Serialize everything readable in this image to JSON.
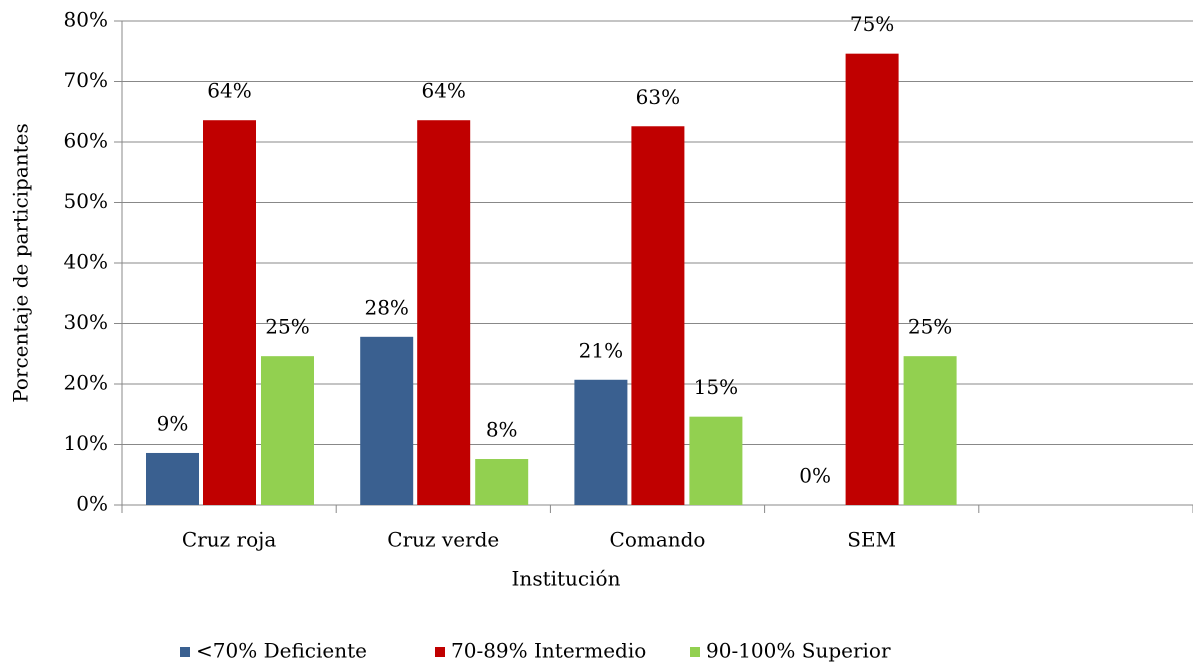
{
  "chart_data": {
    "type": "bar",
    "x_label": "Institución",
    "y_label": "Porcentaje de participantes",
    "categories": [
      "Cruz roja",
      "Cruz verde",
      "Comando",
      "SEM",
      null
    ],
    "series": [
      {
        "name": "<70% Deficiente",
        "color": "#3a6090",
        "values": [
          8.6,
          27.8,
          20.7,
          0,
          null
        ],
        "value_labels": [
          "9%",
          "28%",
          "21%",
          "0%",
          null
        ]
      },
      {
        "name": "70-89% Intermedio",
        "color": "#c00000",
        "values": [
          63.6,
          63.6,
          62.6,
          74.6,
          null
        ],
        "value_labels": [
          "64%",
          "64%",
          "63%",
          "75%",
          null
        ]
      },
      {
        "name": "90-100% Superior",
        "color": "#92d050",
        "values": [
          24.6,
          7.6,
          14.6,
          24.6,
          null
        ],
        "value_labels": [
          "25%",
          "8%",
          "15%",
          "25%",
          null
        ]
      }
    ],
    "ylim": [
      0,
      80
    ],
    "yticks": [
      {
        "value": 0,
        "label": "0%"
      },
      {
        "value": 10,
        "label": "10%"
      },
      {
        "value": 20,
        "label": "20%"
      },
      {
        "value": 30,
        "label": "30%"
      },
      {
        "value": 40,
        "label": "40%"
      },
      {
        "value": 50,
        "label": "50%"
      },
      {
        "value": 60,
        "label": "60%"
      },
      {
        "value": 70,
        "label": "70%"
      },
      {
        "value": 80,
        "label": "80%"
      }
    ],
    "grid": true,
    "legend": "bottom"
  }
}
